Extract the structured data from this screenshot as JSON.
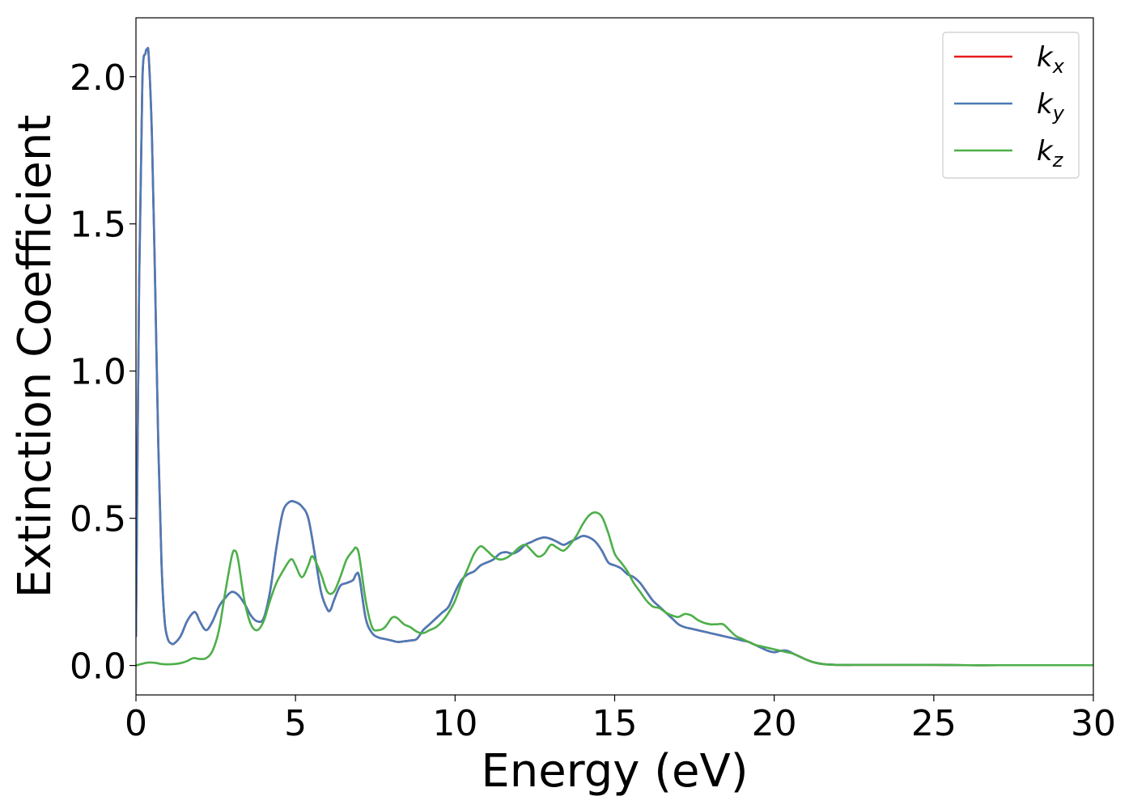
{
  "chart_data": {
    "type": "line",
    "xlabel": "Energy (eV)",
    "ylabel": "Extinction Coefficient",
    "xlim": [
      0,
      30
    ],
    "ylim": [
      -0.1,
      2.2
    ],
    "xticks": [
      0,
      5,
      10,
      15,
      20,
      25,
      30
    ],
    "xtick_labels": [
      "0",
      "5",
      "10",
      "15",
      "20",
      "25",
      "30"
    ],
    "yticks": [
      0.0,
      0.5,
      1.0,
      1.5,
      2.0
    ],
    "ytick_labels": [
      "0.0",
      "0.5",
      "1.0",
      "1.5",
      "2.0"
    ],
    "grid": false,
    "legend_position": "top-right",
    "series": [
      {
        "name": "k_x",
        "label_base": "k",
        "label_sub": "x",
        "color": "#e41a1c",
        "x": [
          0,
          0.1,
          0.2,
          0.3,
          0.35,
          0.4,
          0.5,
          0.6,
          0.7,
          0.8,
          0.9,
          1.0,
          1.1,
          1.2,
          1.4,
          1.6,
          1.8,
          1.9,
          2.0,
          2.2,
          2.4,
          2.6,
          2.8,
          3.0,
          3.2,
          3.4,
          3.6,
          3.8,
          4.0,
          4.2,
          4.4,
          4.6,
          4.8,
          5.0,
          5.2,
          5.4,
          5.6,
          5.8,
          6.0,
          6.1,
          6.2,
          6.4,
          6.6,
          6.8,
          6.9,
          7.0,
          7.2,
          7.4,
          7.6,
          7.8,
          8.0,
          8.2,
          8.4,
          8.6,
          8.8,
          9.0,
          9.2,
          9.4,
          9.6,
          9.8,
          10.0,
          10.2,
          10.4,
          10.6,
          10.8,
          11.0,
          11.2,
          11.4,
          11.6,
          11.8,
          12.0,
          12.2,
          12.4,
          12.6,
          12.8,
          13.0,
          13.2,
          13.4,
          13.6,
          13.8,
          14.0,
          14.2,
          14.4,
          14.6,
          14.8,
          15.0,
          15.2,
          15.4,
          15.6,
          15.8,
          16.0,
          16.2,
          16.4,
          16.6,
          16.8,
          17.0,
          17.2,
          17.4,
          17.6,
          17.8,
          18.0,
          18.2,
          18.4,
          18.6,
          18.8,
          19.0,
          19.2,
          19.4,
          19.6,
          19.8,
          20.0,
          20.2,
          20.4,
          20.6,
          20.8,
          21.0,
          21.2,
          21.4,
          21.6,
          21.8,
          22.0,
          22.5,
          23,
          24,
          25,
          26,
          27,
          28,
          29,
          30
        ],
        "y": [
          0.1,
          1.3,
          1.98,
          2.08,
          2.09,
          2.07,
          1.8,
          1.3,
          0.75,
          0.35,
          0.15,
          0.09,
          0.075,
          0.075,
          0.1,
          0.15,
          0.18,
          0.175,
          0.15,
          0.12,
          0.15,
          0.2,
          0.23,
          0.25,
          0.24,
          0.21,
          0.17,
          0.15,
          0.16,
          0.25,
          0.4,
          0.52,
          0.555,
          0.555,
          0.54,
          0.5,
          0.38,
          0.25,
          0.19,
          0.19,
          0.22,
          0.27,
          0.28,
          0.29,
          0.31,
          0.3,
          0.16,
          0.11,
          0.095,
          0.09,
          0.085,
          0.08,
          0.082,
          0.085,
          0.09,
          0.12,
          0.14,
          0.16,
          0.18,
          0.2,
          0.25,
          0.29,
          0.31,
          0.32,
          0.34,
          0.35,
          0.36,
          0.38,
          0.385,
          0.38,
          0.39,
          0.41,
          0.42,
          0.43,
          0.435,
          0.43,
          0.42,
          0.41,
          0.42,
          0.43,
          0.44,
          0.435,
          0.42,
          0.39,
          0.35,
          0.34,
          0.33,
          0.31,
          0.3,
          0.28,
          0.25,
          0.22,
          0.2,
          0.18,
          0.16,
          0.14,
          0.13,
          0.125,
          0.12,
          0.115,
          0.11,
          0.105,
          0.1,
          0.095,
          0.09,
          0.085,
          0.08,
          0.07,
          0.06,
          0.05,
          0.045,
          0.05,
          0.05,
          0.04,
          0.03,
          0.02,
          0.012,
          0.007,
          0.004,
          0.003,
          0.002,
          0.002,
          0.002,
          0.002,
          0.002,
          0.001,
          0.001,
          0.001,
          0.001,
          0.001
        ]
      },
      {
        "name": "k_y",
        "label_base": "k",
        "label_sub": "y",
        "color": "#4a7bb7",
        "x": [
          0,
          0.1,
          0.2,
          0.3,
          0.35,
          0.4,
          0.5,
          0.6,
          0.7,
          0.8,
          0.9,
          1.0,
          1.1,
          1.2,
          1.4,
          1.6,
          1.8,
          1.9,
          2.0,
          2.2,
          2.4,
          2.6,
          2.8,
          3.0,
          3.2,
          3.4,
          3.6,
          3.8,
          4.0,
          4.2,
          4.4,
          4.6,
          4.8,
          5.0,
          5.2,
          5.4,
          5.6,
          5.8,
          6.0,
          6.1,
          6.2,
          6.4,
          6.6,
          6.8,
          6.9,
          7.0,
          7.2,
          7.4,
          7.6,
          7.8,
          8.0,
          8.2,
          8.4,
          8.6,
          8.8,
          9.0,
          9.2,
          9.4,
          9.6,
          9.8,
          10.0,
          10.2,
          10.4,
          10.6,
          10.8,
          11.0,
          11.2,
          11.4,
          11.6,
          11.8,
          12.0,
          12.2,
          12.4,
          12.6,
          12.8,
          13.0,
          13.2,
          13.4,
          13.6,
          13.8,
          14.0,
          14.2,
          14.4,
          14.6,
          14.8,
          15.0,
          15.2,
          15.4,
          15.6,
          15.8,
          16.0,
          16.2,
          16.4,
          16.6,
          16.8,
          17.0,
          17.2,
          17.4,
          17.6,
          17.8,
          18.0,
          18.2,
          18.4,
          18.6,
          18.8,
          19.0,
          19.2,
          19.4,
          19.6,
          19.8,
          20.0,
          20.2,
          20.4,
          20.6,
          20.8,
          21.0,
          21.2,
          21.4,
          21.6,
          21.8,
          22.0,
          22.5,
          23,
          24,
          25,
          26,
          27,
          28,
          29,
          30
        ],
        "y": [
          0.1,
          1.3,
          1.98,
          2.08,
          2.09,
          2.07,
          1.8,
          1.3,
          0.75,
          0.35,
          0.15,
          0.09,
          0.075,
          0.075,
          0.1,
          0.15,
          0.18,
          0.175,
          0.15,
          0.12,
          0.15,
          0.2,
          0.23,
          0.25,
          0.24,
          0.21,
          0.17,
          0.15,
          0.16,
          0.25,
          0.4,
          0.52,
          0.555,
          0.555,
          0.54,
          0.5,
          0.38,
          0.25,
          0.19,
          0.19,
          0.22,
          0.27,
          0.28,
          0.29,
          0.31,
          0.3,
          0.16,
          0.11,
          0.095,
          0.09,
          0.085,
          0.08,
          0.082,
          0.085,
          0.09,
          0.12,
          0.14,
          0.16,
          0.18,
          0.2,
          0.25,
          0.29,
          0.31,
          0.32,
          0.34,
          0.35,
          0.36,
          0.38,
          0.385,
          0.38,
          0.39,
          0.41,
          0.42,
          0.43,
          0.435,
          0.43,
          0.42,
          0.41,
          0.42,
          0.43,
          0.44,
          0.435,
          0.42,
          0.39,
          0.35,
          0.34,
          0.33,
          0.31,
          0.3,
          0.28,
          0.25,
          0.22,
          0.2,
          0.18,
          0.16,
          0.14,
          0.13,
          0.125,
          0.12,
          0.115,
          0.11,
          0.105,
          0.1,
          0.095,
          0.09,
          0.085,
          0.08,
          0.07,
          0.06,
          0.05,
          0.045,
          0.05,
          0.05,
          0.04,
          0.03,
          0.02,
          0.012,
          0.007,
          0.004,
          0.003,
          0.002,
          0.002,
          0.002,
          0.002,
          0.002,
          0.001,
          0.001,
          0.001,
          0.001,
          0.001
        ]
      },
      {
        "name": "k_z",
        "label_base": "k",
        "label_sub": "z",
        "color": "#4daf4a",
        "x": [
          0,
          0.2,
          0.4,
          0.6,
          0.8,
          1.0,
          1.2,
          1.4,
          1.6,
          1.8,
          2.0,
          2.2,
          2.4,
          2.6,
          2.8,
          3.0,
          3.1,
          3.2,
          3.4,
          3.6,
          3.8,
          4.0,
          4.2,
          4.4,
          4.6,
          4.8,
          4.9,
          5.0,
          5.2,
          5.4,
          5.5,
          5.6,
          5.8,
          6.0,
          6.2,
          6.4,
          6.6,
          6.8,
          6.9,
          7.0,
          7.2,
          7.4,
          7.6,
          7.8,
          8.0,
          8.1,
          8.2,
          8.4,
          8.6,
          8.8,
          9.0,
          9.2,
          9.4,
          9.6,
          9.8,
          10.0,
          10.2,
          10.4,
          10.6,
          10.8,
          11.0,
          11.2,
          11.4,
          11.6,
          11.8,
          12.0,
          12.2,
          12.4,
          12.6,
          12.8,
          13.0,
          13.2,
          13.4,
          13.6,
          13.8,
          14.0,
          14.2,
          14.4,
          14.6,
          14.8,
          15.0,
          15.2,
          15.4,
          15.6,
          15.8,
          16.0,
          16.2,
          16.4,
          16.6,
          16.8,
          17.0,
          17.2,
          17.4,
          17.6,
          17.8,
          18.0,
          18.2,
          18.4,
          18.6,
          18.8,
          19.0,
          19.2,
          19.4,
          19.6,
          19.8,
          20.0,
          20.2,
          20.4,
          20.6,
          20.8,
          21.0,
          21.2,
          21.4,
          21.6,
          21.8,
          22.0,
          22.5,
          23,
          24,
          25,
          26,
          27,
          28,
          29,
          30
        ],
        "y": [
          0.0,
          0.006,
          0.01,
          0.009,
          0.005,
          0.004,
          0.005,
          0.008,
          0.015,
          0.025,
          0.022,
          0.025,
          0.05,
          0.12,
          0.25,
          0.37,
          0.39,
          0.36,
          0.22,
          0.14,
          0.12,
          0.15,
          0.22,
          0.28,
          0.32,
          0.355,
          0.36,
          0.34,
          0.3,
          0.34,
          0.37,
          0.36,
          0.31,
          0.25,
          0.25,
          0.3,
          0.36,
          0.39,
          0.4,
          0.37,
          0.22,
          0.13,
          0.12,
          0.13,
          0.16,
          0.165,
          0.16,
          0.14,
          0.13,
          0.115,
          0.11,
          0.12,
          0.13,
          0.15,
          0.18,
          0.22,
          0.28,
          0.33,
          0.38,
          0.405,
          0.39,
          0.37,
          0.36,
          0.365,
          0.38,
          0.4,
          0.41,
          0.39,
          0.37,
          0.38,
          0.41,
          0.4,
          0.39,
          0.41,
          0.44,
          0.48,
          0.51,
          0.52,
          0.505,
          0.45,
          0.38,
          0.35,
          0.32,
          0.28,
          0.25,
          0.22,
          0.2,
          0.195,
          0.18,
          0.17,
          0.165,
          0.175,
          0.17,
          0.155,
          0.145,
          0.14,
          0.14,
          0.14,
          0.12,
          0.1,
          0.09,
          0.08,
          0.07,
          0.065,
          0.06,
          0.055,
          0.05,
          0.045,
          0.04,
          0.03,
          0.02,
          0.012,
          0.007,
          0.004,
          0.003,
          0.002,
          0.002,
          0.002,
          0.002,
          0.002,
          0.001,
          0.001,
          0.001,
          0.001,
          0.001
        ]
      }
    ]
  }
}
